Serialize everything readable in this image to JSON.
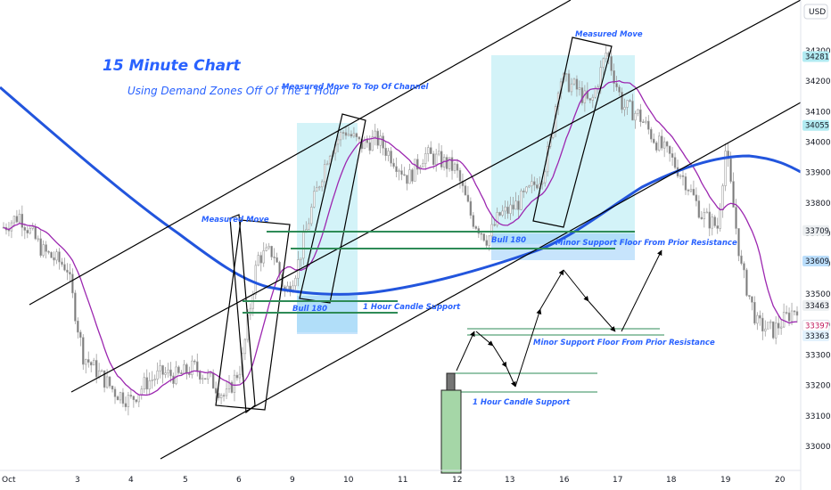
{
  "chart_data": {
    "type": "candlestick",
    "currency": "USD",
    "title": "15 Minute Chart",
    "subtitle": "Using Demand Zones Off Of The 1 Hour",
    "ylim": [
      32920,
      34380
    ],
    "y_ticks": [
      33000,
      33100,
      33200,
      33300,
      33400,
      33500,
      33600,
      33700,
      33800,
      33900,
      34000,
      34100,
      34200,
      34300
    ],
    "x_ticks": [
      "Oct",
      "3",
      "4",
      "5",
      "6",
      "9",
      "10",
      "11",
      "12",
      "13",
      "16",
      "17",
      "18",
      "19",
      "20"
    ],
    "price_tags": [
      {
        "label": "34281",
        "value": 34281,
        "color": "#b2ebf2",
        "text_color": "#131722"
      },
      {
        "label": "34055",
        "value": 34055,
        "color": "#b2ebf2",
        "text_color": "#131722"
      },
      {
        "label": "33709",
        "value": 33709,
        "color": "#eceff1",
        "text_color": "#131722"
      },
      {
        "label": "33609",
        "value": 33609,
        "color": "#bbdefb",
        "text_color": "#131722"
      },
      {
        "label": "33463",
        "value": 33463,
        "color": "#eceff1",
        "text_color": "#131722"
      },
      {
        "label": "33397",
        "value": 33397,
        "color": "#ffffff",
        "text_color": "#c2185b"
      },
      {
        "label": "33363",
        "value": 33363,
        "color": "#e3f2fd",
        "text_color": "#131722"
      }
    ],
    "annotations": {
      "measured_move_top": "Measured Move To Top Of Channel",
      "measured_move_left": "Measured Move",
      "measured_move_right": "Measured Move",
      "bull_left": "Bull 180",
      "bull_right": "Bull 180",
      "hour_support_left": "1 Hour Candle Support",
      "hour_support_right": "1 Hour Candle Support",
      "minor_support_top": "Minor Support Floor From Prior Resistance",
      "minor_support_bottom": "Minor Support Floor From Prior Resistance"
    },
    "colors": {
      "candles": "#9e9e9e",
      "ma_slow": "#2255dd",
      "ma_fast": "#9c27b0",
      "zone": "#80deea",
      "zone_low": "#90caf9",
      "support_line": "#2e8b57",
      "channel": "#000000"
    },
    "price_path": [
      [
        0,
        33720
      ],
      [
        0.02,
        33760
      ],
      [
        0.05,
        33640
      ],
      [
        0.08,
        33590
      ],
      [
        0.1,
        33300
      ],
      [
        0.12,
        33240
      ],
      [
        0.14,
        33180
      ],
      [
        0.16,
        33150
      ],
      [
        0.18,
        33210
      ],
      [
        0.2,
        33240
      ],
      [
        0.22,
        33230
      ],
      [
        0.24,
        33260
      ],
      [
        0.26,
        33220
      ],
      [
        0.28,
        33160
      ],
      [
        0.3,
        33270
      ],
      [
        0.32,
        33620
      ],
      [
        0.34,
        33640
      ],
      [
        0.355,
        33500
      ],
      [
        0.37,
        33590
      ],
      [
        0.39,
        33800
      ],
      [
        0.41,
        33970
      ],
      [
        0.43,
        34040
      ],
      [
        0.45,
        33990
      ],
      [
        0.47,
        34010
      ],
      [
        0.49,
        33950
      ],
      [
        0.51,
        33880
      ],
      [
        0.53,
        33960
      ],
      [
        0.55,
        33940
      ],
      [
        0.57,
        33910
      ],
      [
        0.59,
        33750
      ],
      [
        0.61,
        33680
      ],
      [
        0.625,
        33760
      ],
      [
        0.64,
        33780
      ],
      [
        0.66,
        33830
      ],
      [
        0.68,
        33900
      ],
      [
        0.69,
        34010
      ],
      [
        0.7,
        34210
      ],
      [
        0.72,
        34180
      ],
      [
        0.74,
        34120
      ],
      [
        0.76,
        34300
      ],
      [
        0.78,
        34120
      ],
      [
        0.8,
        34090
      ],
      [
        0.82,
        34010
      ],
      [
        0.84,
        33950
      ],
      [
        0.86,
        33870
      ],
      [
        0.88,
        33760
      ],
      [
        0.9,
        33720
      ],
      [
        0.91,
        33980
      ],
      [
        0.93,
        33580
      ],
      [
        0.95,
        33400
      ],
      [
        0.97,
        33380
      ],
      [
        1.0,
        33460
      ]
    ]
  }
}
